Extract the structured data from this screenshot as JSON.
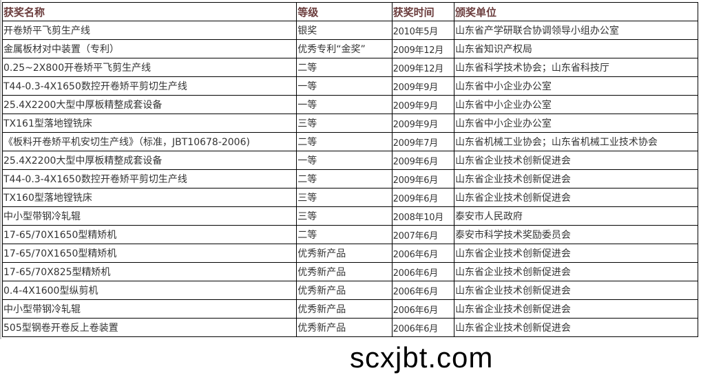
{
  "table": {
    "headers": [
      "获奖名称",
      "等级",
      "获奖时间",
      "颁奖单位"
    ],
    "rows": [
      [
        "开卷矫平飞剪生产线",
        "银奖",
        "2010年5月",
        "山东省产学研联合协调领导小组办公室"
      ],
      [
        "金属板材对中装置（专利）",
        "优秀专利“金奖”",
        "2009年12月",
        "山东省知识产权局"
      ],
      [
        "0.25~2X800开卷矫平飞剪生产线",
        "二等",
        "2009年12月",
        "山东省科学技术协会；山东省科技厅"
      ],
      [
        "T44-0.3-4X1650数控开卷矫平剪切生产线",
        "一等",
        "2009年9月",
        "山东省中小企业办公室"
      ],
      [
        "25.4X2200大型中厚板精整成套设备",
        "一等",
        "2009年9月",
        "山东省中小企业办公室"
      ],
      [
        "TX161型落地镗铣床",
        "三等",
        "2009年9月",
        "山东省中小企业办公室"
      ],
      [
        "《板料开卷矫平机安切生产线》（标准，JBT10678-2006)",
        "二等",
        "2009年7月",
        "山东省机械工业协会；山东省机械工业技术协会"
      ],
      [
        "25.4X2200大型中厚板精整成套设备",
        "一等",
        "2009年6月",
        "山东省企业技术创新促进会"
      ],
      [
        "T44-0.3-4X1650数控开卷矫平剪切生产线",
        "二等",
        "2009年6月",
        "山东省企业技术创新促进会"
      ],
      [
        "TX160型落地镗铣床",
        "三等",
        "2009年6月",
        "山东省企业技术创新促进会"
      ],
      [
        "中小型带钢冷轧辊",
        "三等",
        "2008年10月",
        "泰安市人民政府"
      ],
      [
        "17-65/70X1650型精矫机",
        "二等",
        "2007年6月",
        "泰安市科学技术奖励委员会"
      ],
      [
        "17-65/70X1650型精矫机",
        "优秀新产品",
        "2006年6月",
        "山东省企业技术创新促进会"
      ],
      [
        "17-65/70X825型精矫机",
        "优秀新产品",
        "2006年6月",
        "山东省企业技术创新促进会"
      ],
      [
        "0.4-4X1600型纵剪机",
        "优秀新产品",
        "2006年6月",
        "山东省企业技术创新促进会"
      ],
      [
        "中小型带钢冷轧辊",
        "优秀新产品",
        "2006年6月",
        "山东省企业技术创新促进会"
      ],
      [
        "505型钢卷开卷反上卷装置",
        "优秀新产品",
        "2006年6月",
        "山东省企业技术创新促进会"
      ]
    ]
  },
  "watermark": "scxjbt.com",
  "colors": {
    "header_text": "#6b3d3d",
    "cell_text": "#333333",
    "border": "#000000"
  }
}
